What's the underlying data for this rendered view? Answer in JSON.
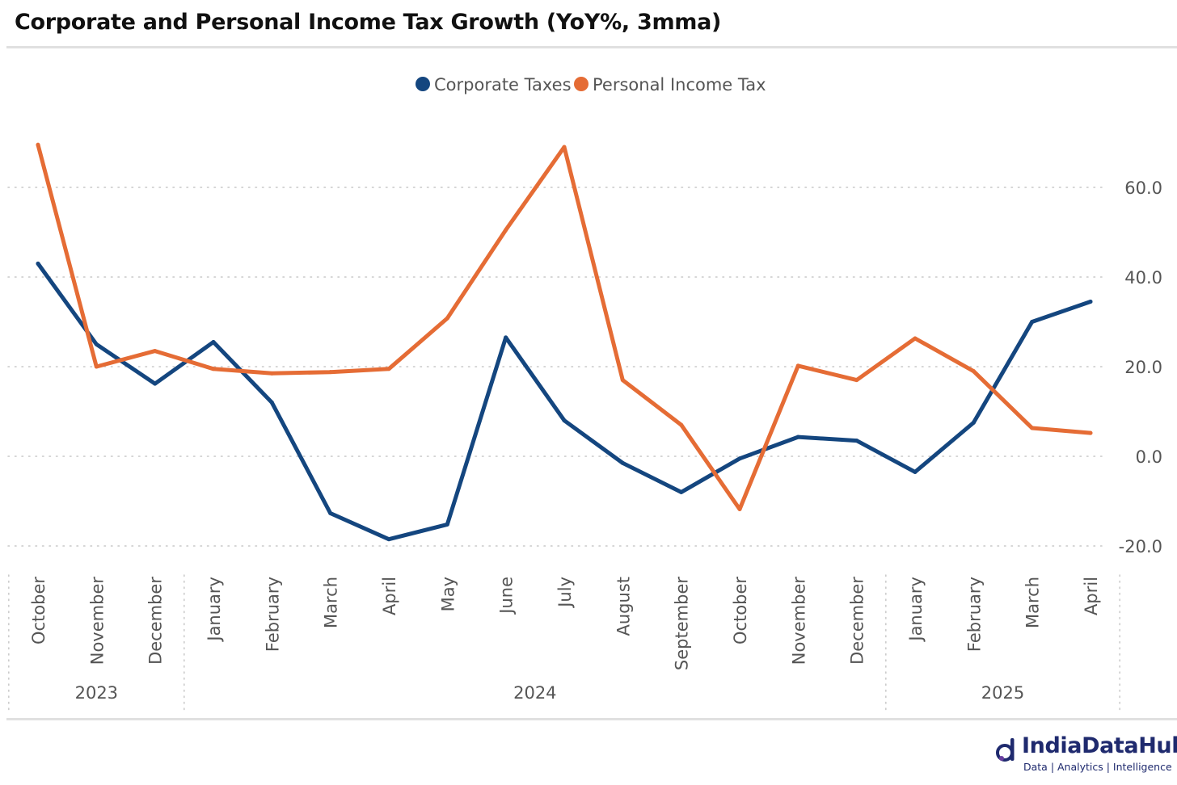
{
  "title": "Corporate and Personal Income Tax Growth (YoY%, 3mma)",
  "logo": {
    "name": "IndiaDataHub",
    "tagline": "Data | Analytics | Intelligence"
  },
  "chart_data": {
    "type": "line",
    "title": "Corporate and Personal Income Tax Growth (YoY%, 3mma)",
    "xlabel": "",
    "ylabel": "",
    "ylim": [
      -20,
      60
    ],
    "y_ticks": [
      "60.0",
      "40.0",
      "20.0",
      "0.0",
      "-20.0"
    ],
    "y_tick_values": [
      60,
      40,
      20,
      0,
      -20
    ],
    "y_axis_side": "right",
    "grid": "horizontal dotted",
    "legend_position": "top-center",
    "categories": [
      "October",
      "November",
      "December",
      "January",
      "February",
      "March",
      "April",
      "May",
      "June",
      "July",
      "August",
      "September",
      "October",
      "November",
      "December",
      "January",
      "February",
      "March",
      "April"
    ],
    "year_groups": [
      {
        "label": "2023",
        "count": 3
      },
      {
        "label": "2024",
        "count": 12
      },
      {
        "label": "2025",
        "count": 4
      }
    ],
    "series": [
      {
        "name": "Corporate Taxes",
        "color": "#14467f",
        "values": [
          43,
          25,
          16.2,
          25.5,
          12,
          -12.7,
          -18.5,
          -15.2,
          26.5,
          8,
          -1.5,
          -8,
          -0.5,
          4.3,
          3.5,
          -3.5,
          7.5,
          30,
          34.5
        ]
      },
      {
        "name": "Personal Income Tax",
        "color": "#e56c35",
        "values": [
          69.5,
          20,
          23.5,
          19.5,
          18.5,
          18.8,
          19.5,
          30.8,
          50.5,
          69,
          17,
          7,
          -11.8,
          20.2,
          17,
          26.3,
          19,
          6.3,
          5.2
        ]
      }
    ]
  }
}
